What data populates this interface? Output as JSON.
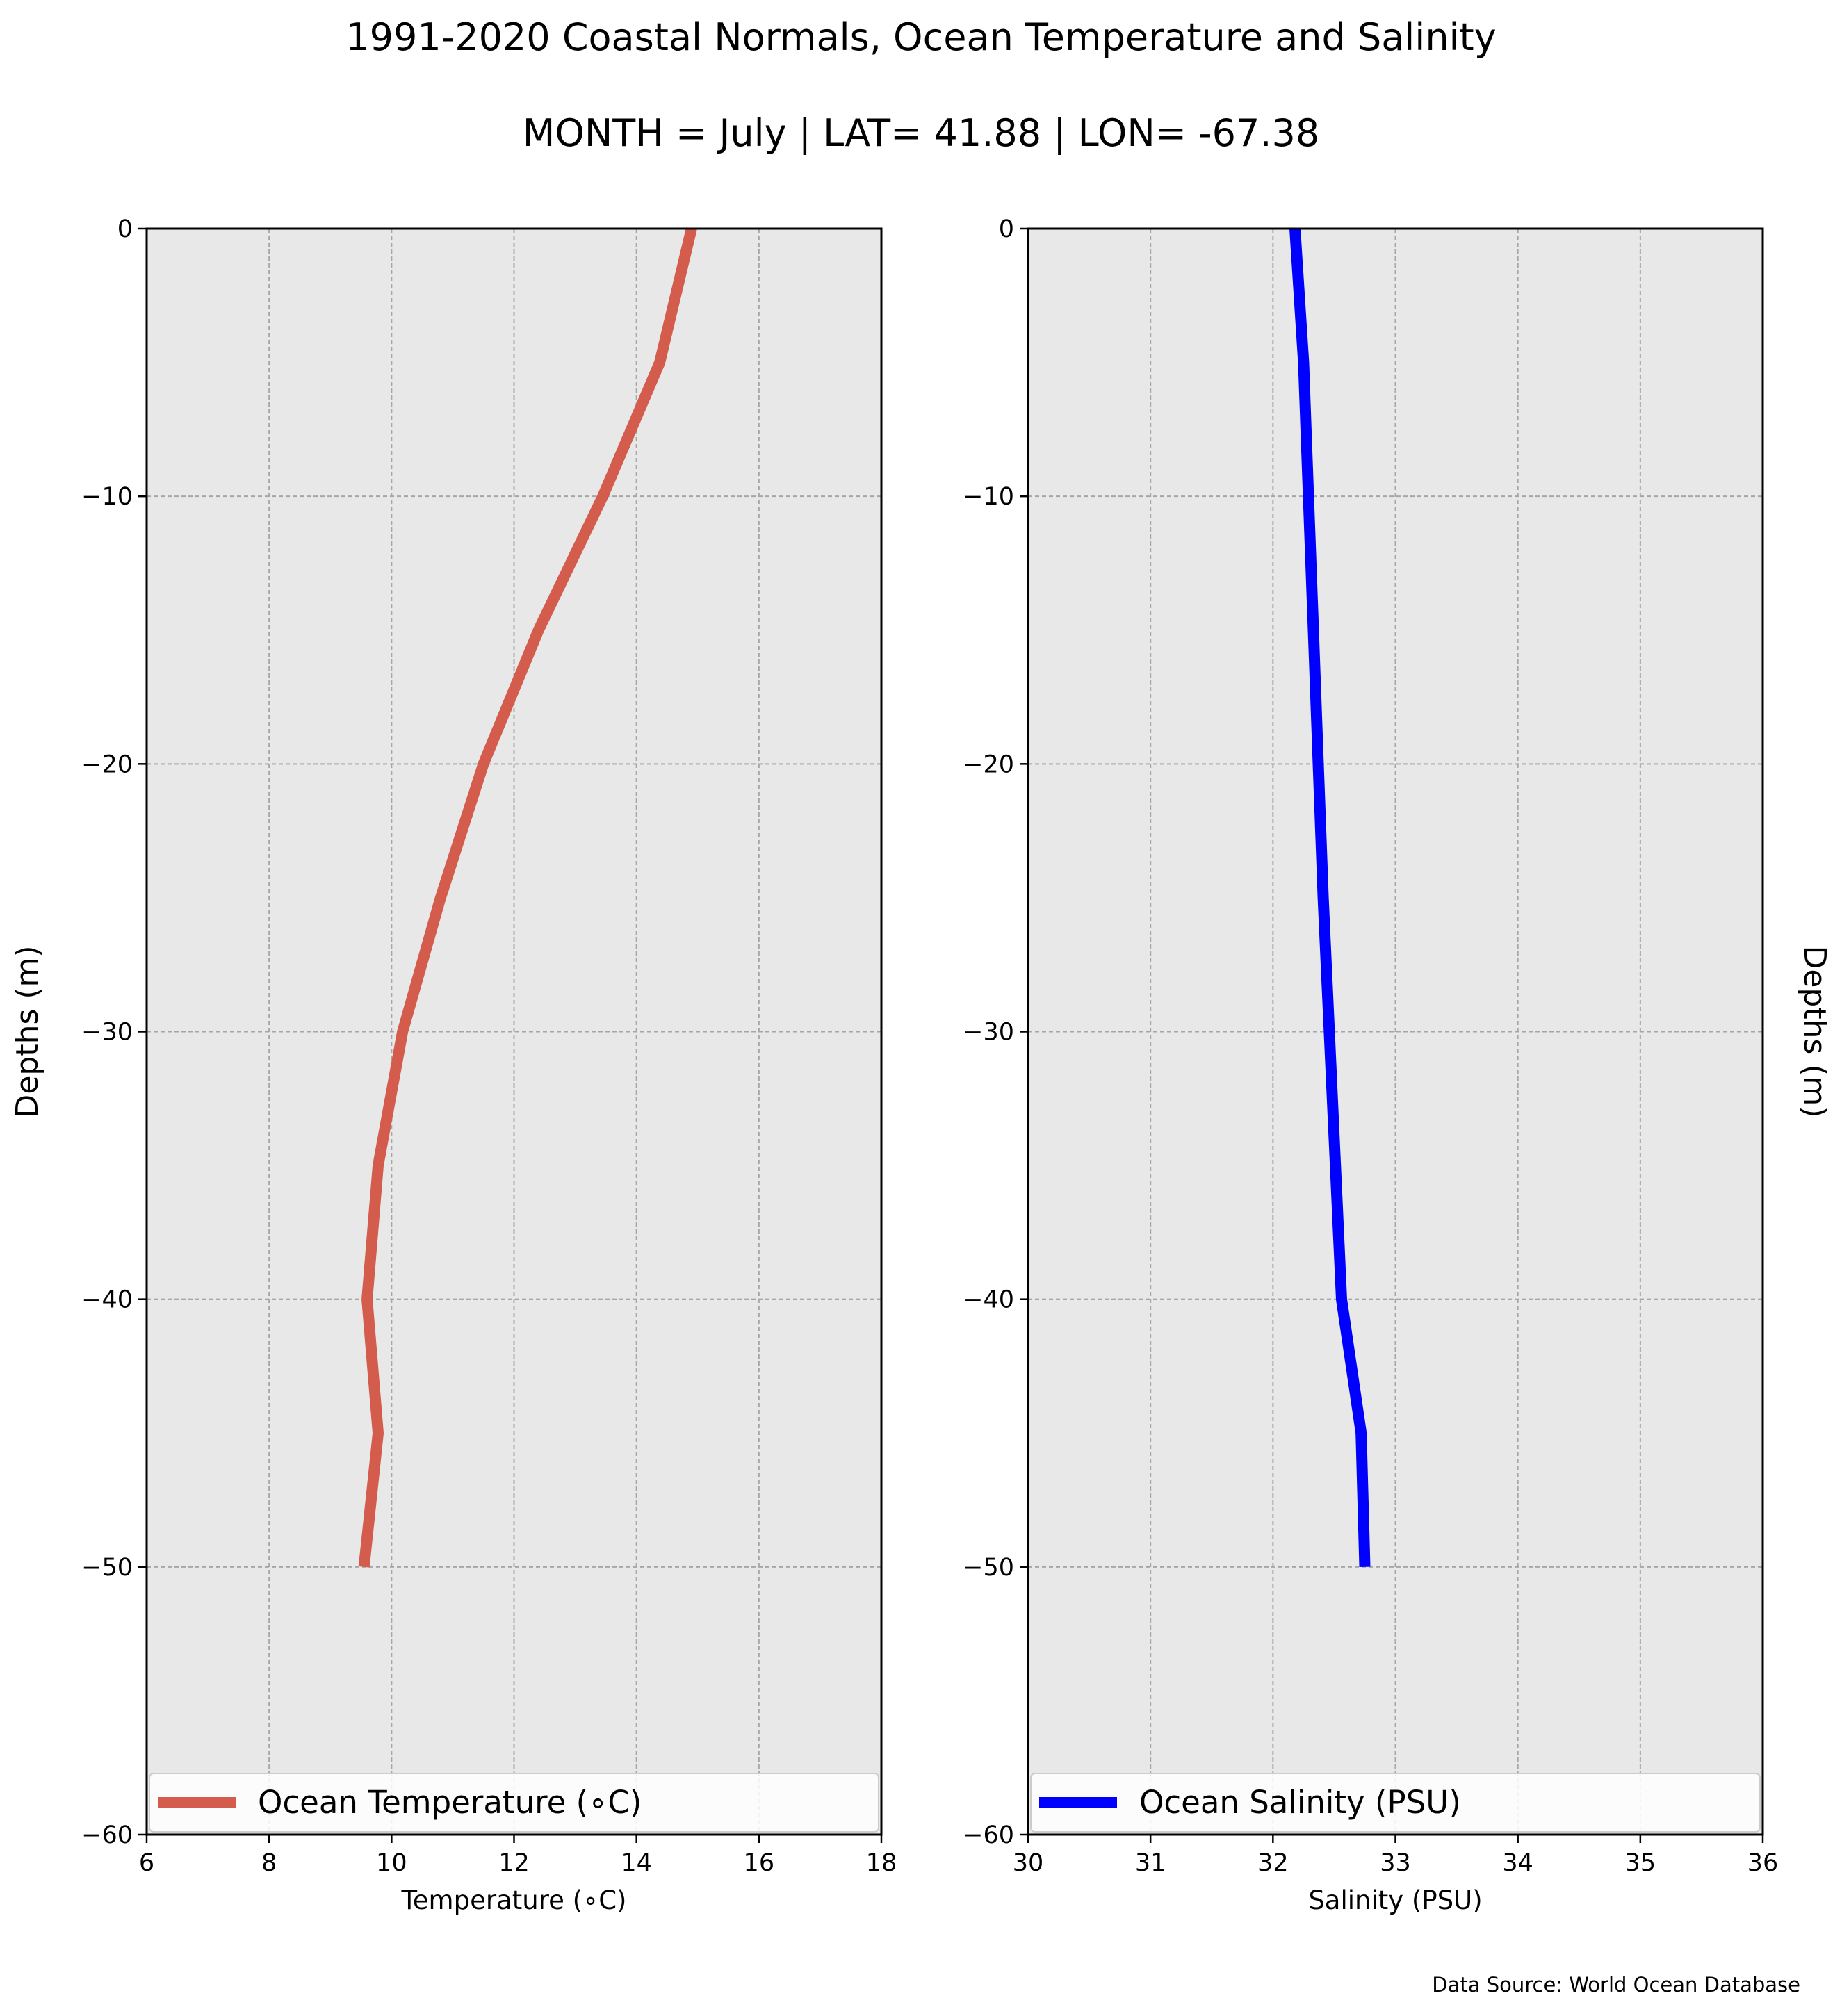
{
  "figure": {
    "title": "1991-2020 Coastal Normals, Ocean Temperature and Salinity",
    "subtitle": "MONTH = July | LAT= 41.88 | LON= -67.38",
    "source": "Data Source: World Ocean Database"
  },
  "chart_data": [
    {
      "type": "line",
      "xlabel": "Temperature (∘C)",
      "ylabel": "Depths (m)",
      "xlim": [
        6,
        18
      ],
      "ylim": [
        -60,
        0
      ],
      "xticks": [
        6,
        8,
        10,
        12,
        14,
        16,
        18
      ],
      "yticks": [
        0,
        -10,
        -20,
        -30,
        -40,
        -50,
        -60
      ],
      "grid": true,
      "legend_position": "bottom",
      "series": [
        {
          "name": "Ocean Temperature (∘C)",
          "color": "#d45c4d",
          "x": [
            14.9,
            14.38,
            13.45,
            12.4,
            11.5,
            10.8,
            10.18,
            9.78,
            9.6,
            9.78,
            9.55
          ],
          "y": [
            0,
            -5,
            -10,
            -15,
            -20,
            -25,
            -30,
            -35,
            -40,
            -45,
            -50
          ]
        }
      ]
    },
    {
      "type": "line",
      "xlabel": "Salinity (PSU)",
      "ylabel": "Depths (m)",
      "xlim": [
        30,
        36
      ],
      "ylim": [
        -60,
        0
      ],
      "xticks": [
        30,
        31,
        32,
        33,
        34,
        35,
        36
      ],
      "yticks": [
        0,
        -10,
        -20,
        -30,
        -40,
        -50,
        -60
      ],
      "grid": true,
      "legend_position": "bottom",
      "series": [
        {
          "name": "Ocean Salinity (PSU)",
          "color": "#0000ff",
          "x": [
            32.18,
            32.25,
            32.29,
            32.33,
            32.37,
            32.41,
            32.46,
            32.51,
            32.56,
            32.72,
            32.75
          ],
          "y": [
            0,
            -5,
            -10,
            -15,
            -20,
            -25,
            -30,
            -35,
            -40,
            -45,
            -50
          ]
        }
      ]
    }
  ]
}
